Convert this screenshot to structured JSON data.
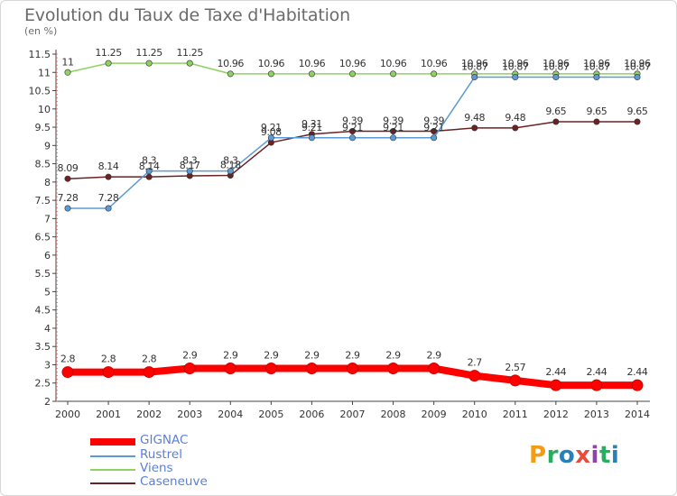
{
  "chart_data": {
    "type": "line",
    "title": "Evolution du Taux de Taxe d'Habitation",
    "ylabel": "(en %)",
    "x": [
      "2000",
      "2001",
      "2002",
      "2003",
      "2004",
      "2005",
      "2006",
      "2007",
      "2008",
      "2009",
      "2010",
      "2011",
      "2012",
      "2013",
      "2014"
    ],
    "ylim": [
      2,
      11.5
    ],
    "yticks": [
      2,
      2.5,
      3,
      3.5,
      4,
      4.5,
      5,
      5.5,
      6,
      6.5,
      7,
      7.5,
      8,
      8.5,
      9,
      9.5,
      10,
      10.5,
      11,
      11.5
    ],
    "grid": false,
    "legend_position": "bottom-left",
    "series": [
      {
        "name": "GIGNAC",
        "color": "#ff0000",
        "values": [
          2.8,
          2.8,
          2.8,
          2.9,
          2.9,
          2.9,
          2.9,
          2.9,
          2.9,
          2.9,
          2.7,
          2.57,
          2.44,
          2.44,
          2.44
        ],
        "labels": [
          "2.8",
          "2.8",
          "2.8",
          "2.9",
          "2.9",
          "2.9",
          "2.9",
          "2.9",
          "2.9",
          "2.9",
          "2.7",
          "2.57",
          "2.44",
          "2.44",
          "2.44"
        ]
      },
      {
        "name": "Rustrel",
        "color": "#5b9bd5",
        "values": [
          7.28,
          7.28,
          8.3,
          8.3,
          8.3,
          9.21,
          9.21,
          9.21,
          9.21,
          9.21,
          10.87,
          10.87,
          10.87,
          10.87,
          10.87
        ],
        "labels": [
          "7.28",
          "7.28",
          "8.3",
          "8.3",
          "8.3",
          "9.21",
          "9.21",
          "9.21",
          "9.21",
          "9.21",
          "10.87",
          "10.87",
          "10.87",
          "10.87",
          "10.87"
        ]
      },
      {
        "name": "Viens",
        "color": "#8fd163",
        "values": [
          11,
          11.25,
          11.25,
          11.25,
          10.96,
          10.96,
          10.96,
          10.96,
          10.96,
          10.96,
          10.96,
          10.96,
          10.96,
          10.96,
          10.96
        ],
        "labels": [
          "11",
          "11.25",
          "11.25",
          "11.25",
          "10.96",
          "10.96",
          "10.96",
          "10.96",
          "10.96",
          "10.96",
          "10.96",
          "10.96",
          "10.96",
          "10.96",
          "10.96"
        ]
      },
      {
        "name": "Caseneuve",
        "color": "#6b2222",
        "values": [
          8.09,
          8.14,
          8.14,
          8.17,
          8.18,
          9.08,
          9.31,
          9.39,
          9.39,
          9.39,
          9.48,
          9.48,
          9.65,
          9.65,
          9.65
        ],
        "labels": [
          "8.09",
          "8.14",
          "8.14",
          "8.17",
          "8.18",
          "9.08",
          "9.31",
          "9.39",
          "9.39",
          "9.39",
          "9.48",
          "9.48",
          "9.65",
          "9.65",
          "9.65"
        ]
      }
    ]
  },
  "brand": {
    "name": "Proxiti",
    "letters": [
      "P",
      "r",
      "o",
      "x",
      "i",
      "t",
      "i"
    ],
    "colors": [
      "#f39c12",
      "#27ae60",
      "#2980b9",
      "#e74c3c",
      "#8e44ad",
      "#27ae60",
      "#2980b9"
    ]
  }
}
